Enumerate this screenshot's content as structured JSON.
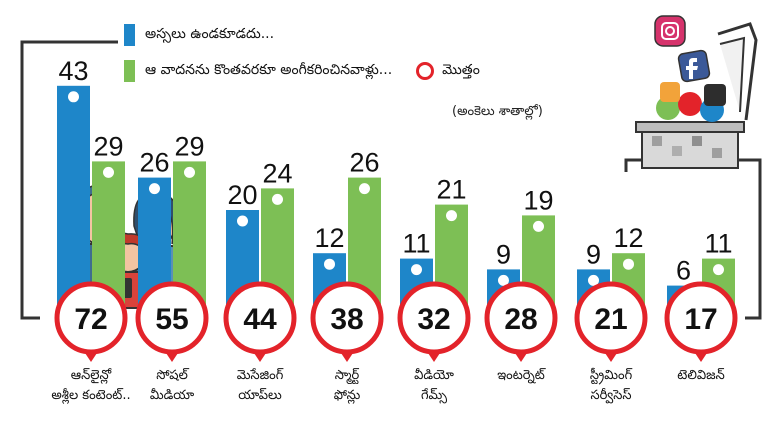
{
  "legend": {
    "blue_label": "అస్సలు ఉండకూడదు...",
    "green_label": "ఆ వాదనను కొంతవరకూ అంగీకరించినవాళ్లు...",
    "total_label": "మొత్తం"
  },
  "units_note": "(అంకెలు శాతాల్లో)",
  "colors": {
    "blue": "#1e86c9",
    "green": "#7dbf55",
    "ring": "#e3232a",
    "frame": "#333333"
  },
  "chart_data": {
    "type": "bar",
    "categories": [
      [
        "ఆన్‌లైన్లో",
        "అశ్లీల కంటెంట్.."
      ],
      [
        "సోషల్",
        "మీడియా"
      ],
      [
        "మెసేజింగ్",
        "యాప్‌లు"
      ],
      [
        "స్మార్ట్",
        "ఫోన్లు"
      ],
      [
        "వీడియో",
        "గేమ్స్"
      ],
      [
        "ఇంటర్నెట్",
        ""
      ],
      [
        "స్ట్రీమింగ్",
        "సర్వీసెస్"
      ],
      [
        "టెలివిజన్",
        ""
      ]
    ],
    "series": [
      {
        "name": "అస్సలు ఉండకూడదు...",
        "color": "#1e86c9",
        "values": [
          43,
          26,
          20,
          12,
          11,
          9,
          9,
          6
        ]
      },
      {
        "name": "ఆ వాదనను కొంతవరకూ అంగీకరించినవాళ్లు...",
        "color": "#7dbf55",
        "values": [
          29,
          29,
          24,
          26,
          21,
          19,
          12,
          11
        ]
      }
    ],
    "totals": [
      72,
      55,
      44,
      38,
      32,
      28,
      21,
      17
    ]
  }
}
